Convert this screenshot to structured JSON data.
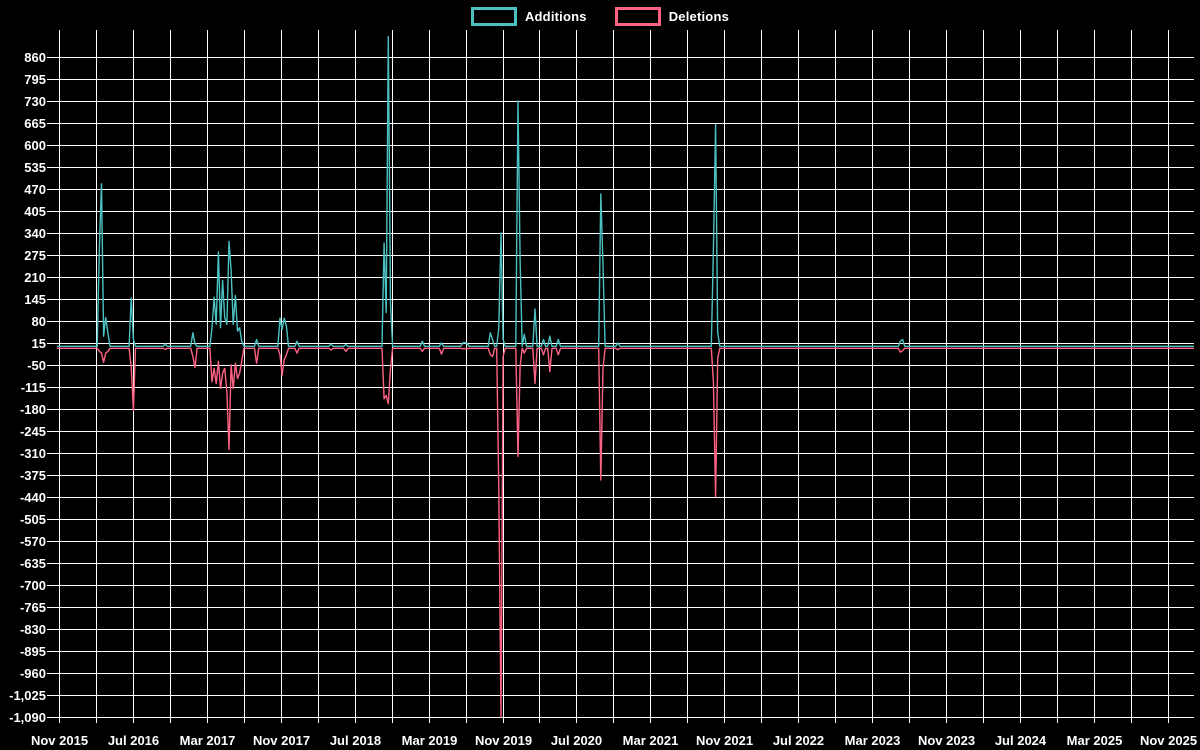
{
  "legend": {
    "items": [
      {
        "label": "Additions",
        "color": "#4bc0c0"
      },
      {
        "label": "Deletions",
        "color": "#ff6384"
      }
    ]
  },
  "chart_data": {
    "type": "line",
    "title": "",
    "legend_position": "top",
    "grid": true,
    "background": "#000000",
    "text_color": "#ffffff",
    "gridline_color": "#ffffff",
    "x_axis": {
      "labels": [
        "Nov 2015",
        "Jul 2016",
        "Mar 2017",
        "Nov 2017",
        "Jul 2018",
        "Mar 2019",
        "Nov 2019",
        "Jul 2020",
        "Mar 2021",
        "Nov 2021",
        "Jul 2022",
        "Mar 2023",
        "Nov 2023",
        "Jul 2024",
        "Mar 2025",
        "Nov 2025"
      ],
      "start": "2015-11-01",
      "end": "2025-12-28",
      "gridline_interval_months": 4,
      "label_interval_months": 8
    },
    "y_axis": {
      "max": 860,
      "min": -1090,
      "step": 65,
      "tick_labels": [
        "860",
        "795",
        "730",
        "665",
        "600",
        "535",
        "470",
        "405",
        "340",
        "275",
        "210",
        "145",
        "80",
        "15",
        "-50",
        "-115",
        "-180",
        "-245",
        "-310",
        "-375",
        "-440",
        "-505",
        "-570",
        "-635",
        "-700",
        "-765",
        "-830",
        "-895",
        "-960",
        "-1,025",
        "-1,090"
      ]
    },
    "series": [
      {
        "name": "Additions",
        "color": "#4bc0c0",
        "baseline": 5
      },
      {
        "name": "Deletions",
        "color": "#ff6384",
        "baseline": -1
      }
    ],
    "weekly_events": [
      {
        "date": "2016-03-14",
        "additions": 300,
        "deletions": -10
      },
      {
        "date": "2016-03-21",
        "additions": 485,
        "deletions": -15
      },
      {
        "date": "2016-03-28",
        "additions": 35,
        "deletions": -42
      },
      {
        "date": "2016-04-04",
        "additions": 90,
        "deletions": -15
      },
      {
        "date": "2016-04-11",
        "additions": 45,
        "deletions": -10
      },
      {
        "date": "2016-06-27",
        "additions": 148,
        "deletions": -55
      },
      {
        "date": "2016-07-04",
        "additions": 25,
        "deletions": -185
      },
      {
        "date": "2016-10-17",
        "additions": 12,
        "deletions": -4
      },
      {
        "date": "2017-01-16",
        "additions": 45,
        "deletions": -25
      },
      {
        "date": "2017-01-23",
        "additions": 12,
        "deletions": -58
      },
      {
        "date": "2017-03-20",
        "additions": 60,
        "deletions": -100
      },
      {
        "date": "2017-03-27",
        "additions": 150,
        "deletions": -60
      },
      {
        "date": "2017-04-03",
        "additions": 70,
        "deletions": -105
      },
      {
        "date": "2017-04-10",
        "additions": 284,
        "deletions": -40
      },
      {
        "date": "2017-04-17",
        "additions": 60,
        "deletions": -120
      },
      {
        "date": "2017-04-24",
        "additions": 200,
        "deletions": -75
      },
      {
        "date": "2017-05-01",
        "additions": 90,
        "deletions": -60
      },
      {
        "date": "2017-05-08",
        "additions": 70,
        "deletions": -130
      },
      {
        "date": "2017-05-15",
        "additions": 315,
        "deletions": -300
      },
      {
        "date": "2017-05-22",
        "additions": 230,
        "deletions": -50
      },
      {
        "date": "2017-05-29",
        "additions": 70,
        "deletions": -120
      },
      {
        "date": "2017-06-05",
        "additions": 155,
        "deletions": -45
      },
      {
        "date": "2017-06-12",
        "additions": 50,
        "deletions": -90
      },
      {
        "date": "2017-06-19",
        "additions": 60,
        "deletions": -75
      },
      {
        "date": "2017-06-26",
        "additions": 20,
        "deletions": -40
      },
      {
        "date": "2017-08-14",
        "additions": 25,
        "deletions": -45
      },
      {
        "date": "2017-10-30",
        "additions": 88,
        "deletions": -20
      },
      {
        "date": "2017-11-06",
        "additions": 55,
        "deletions": -80
      },
      {
        "date": "2017-11-13",
        "additions": 88,
        "deletions": -35
      },
      {
        "date": "2017-11-20",
        "additions": 65,
        "deletions": -20
      },
      {
        "date": "2017-12-25",
        "additions": 20,
        "deletions": -15
      },
      {
        "date": "2018-04-16",
        "additions": 12,
        "deletions": -6
      },
      {
        "date": "2018-06-04",
        "additions": 10,
        "deletions": -10
      },
      {
        "date": "2018-10-08",
        "additions": 310,
        "deletions": -150
      },
      {
        "date": "2018-10-15",
        "additions": 105,
        "deletions": -140
      },
      {
        "date": "2018-10-22",
        "additions": 920,
        "deletions": -165
      },
      {
        "date": "2018-10-29",
        "additions": 130,
        "deletions": -60
      },
      {
        "date": "2019-02-11",
        "additions": 20,
        "deletions": -10
      },
      {
        "date": "2019-04-15",
        "additions": 15,
        "deletions": -18
      },
      {
        "date": "2019-06-24",
        "additions": 15,
        "deletions": -2
      },
      {
        "date": "2019-07-01",
        "additions": 16,
        "deletions": -2
      },
      {
        "date": "2019-07-08",
        "additions": 14,
        "deletions": -2
      },
      {
        "date": "2019-09-23",
        "additions": 45,
        "deletions": -20
      },
      {
        "date": "2019-09-30",
        "additions": 25,
        "deletions": -25
      },
      {
        "date": "2019-10-21",
        "additions": 60,
        "deletions": -420
      },
      {
        "date": "2019-10-28",
        "additions": 340,
        "deletions": -1090
      },
      {
        "date": "2019-11-04",
        "additions": 25,
        "deletions": -25
      },
      {
        "date": "2019-12-23",
        "additions": 730,
        "deletions": -320
      },
      {
        "date": "2019-12-30",
        "additions": 260,
        "deletions": -55
      },
      {
        "date": "2020-01-13",
        "additions": 40,
        "deletions": -15
      },
      {
        "date": "2020-02-17",
        "additions": 115,
        "deletions": -105
      },
      {
        "date": "2020-03-16",
        "additions": 25,
        "deletions": -20
      },
      {
        "date": "2020-04-06",
        "additions": 35,
        "deletions": -70
      },
      {
        "date": "2020-05-04",
        "additions": 25,
        "deletions": -20
      },
      {
        "date": "2020-09-21",
        "additions": 455,
        "deletions": -390
      },
      {
        "date": "2020-09-28",
        "additions": 245,
        "deletions": -60
      },
      {
        "date": "2020-11-16",
        "additions": 15,
        "deletions": -5
      },
      {
        "date": "2021-09-27",
        "additions": 290,
        "deletions": -100
      },
      {
        "date": "2021-10-04",
        "additions": 660,
        "deletions": -440
      },
      {
        "date": "2021-10-11",
        "additions": 45,
        "deletions": -30
      },
      {
        "date": "2023-06-05",
        "additions": 20,
        "deletions": -12
      },
      {
        "date": "2023-06-12",
        "additions": 25,
        "deletions": -8
      }
    ]
  }
}
